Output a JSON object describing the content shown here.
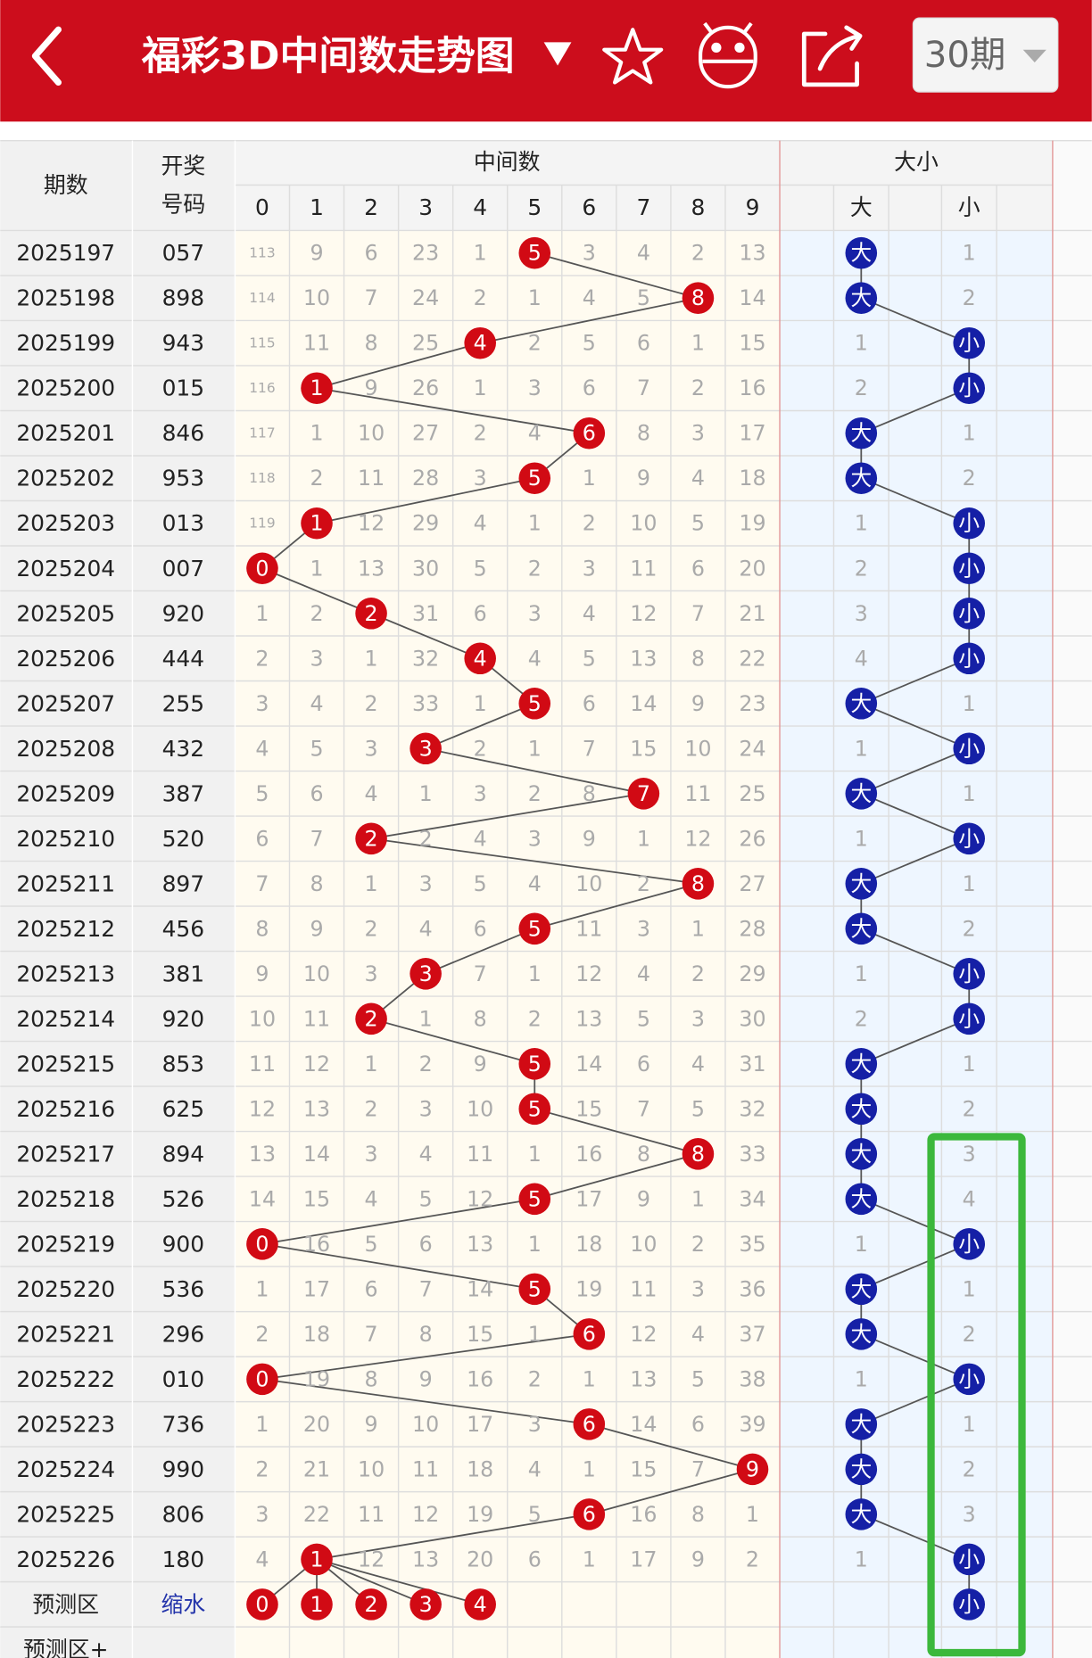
{
  "header": {
    "title": "福彩3D中间数走势图",
    "period_select": "30期"
  },
  "table": {
    "head": {
      "period": "期数",
      "draw": [
        "开奖",
        "号码"
      ],
      "middle": "中间数",
      "size": "大小",
      "digits": [
        "0",
        "1",
        "2",
        "3",
        "4",
        "5",
        "6",
        "7",
        "8",
        "9"
      ],
      "big": "大",
      "small": "小"
    },
    "rows": [
      {
        "period": "2025197",
        "draw": "057",
        "mid": [
          "113",
          "9",
          "6",
          "23",
          "1",
          {
            "ball": "5"
          },
          "3",
          "4",
          "2",
          "13"
        ],
        "big": {
          "ball": "大"
        },
        "small": "1"
      },
      {
        "period": "2025198",
        "draw": "898",
        "mid": [
          "114",
          "10",
          "7",
          "24",
          "2",
          "1",
          "4",
          "5",
          {
            "ball": "8"
          },
          "14"
        ],
        "big": {
          "ball": "大"
        },
        "small": "2"
      },
      {
        "period": "2025199",
        "draw": "943",
        "mid": [
          "115",
          "11",
          "8",
          "25",
          {
            "ball": "4"
          },
          "2",
          "5",
          "6",
          "1",
          "15"
        ],
        "big": "1",
        "small": {
          "ball": "小"
        }
      },
      {
        "period": "2025200",
        "draw": "015",
        "mid": [
          "116",
          {
            "ball": "1"
          },
          "9",
          "26",
          "1",
          "3",
          "6",
          "7",
          "2",
          "16"
        ],
        "big": "2",
        "small": {
          "ball": "小"
        }
      },
      {
        "period": "2025201",
        "draw": "846",
        "mid": [
          "117",
          "1",
          "10",
          "27",
          "2",
          "4",
          {
            "ball": "6"
          },
          "8",
          "3",
          "17"
        ],
        "big": {
          "ball": "大"
        },
        "small": "1"
      },
      {
        "period": "2025202",
        "draw": "953",
        "mid": [
          "118",
          "2",
          "11",
          "28",
          "3",
          {
            "ball": "5"
          },
          "1",
          "9",
          "4",
          "18"
        ],
        "big": {
          "ball": "大"
        },
        "small": "2"
      },
      {
        "period": "2025203",
        "draw": "013",
        "mid": [
          "119",
          {
            "ball": "1"
          },
          "12",
          "29",
          "4",
          "1",
          "2",
          "10",
          "5",
          "19"
        ],
        "big": "1",
        "small": {
          "ball": "小"
        }
      },
      {
        "period": "2025204",
        "draw": "007",
        "mid": [
          {
            "ball": "0"
          },
          "1",
          "13",
          "30",
          "5",
          "2",
          "3",
          "11",
          "6",
          "20"
        ],
        "big": "2",
        "small": {
          "ball": "小"
        }
      },
      {
        "period": "2025205",
        "draw": "920",
        "mid": [
          "1",
          "2",
          {
            "ball": "2"
          },
          "31",
          "6",
          "3",
          "4",
          "12",
          "7",
          "21"
        ],
        "big": "3",
        "small": {
          "ball": "小"
        }
      },
      {
        "period": "2025206",
        "draw": "444",
        "mid": [
          "2",
          "3",
          "1",
          "32",
          {
            "ball": "4"
          },
          "4",
          "5",
          "13",
          "8",
          "22"
        ],
        "big": "4",
        "small": {
          "ball": "小"
        }
      },
      {
        "period": "2025207",
        "draw": "255",
        "mid": [
          "3",
          "4",
          "2",
          "33",
          "1",
          {
            "ball": "5"
          },
          "6",
          "14",
          "9",
          "23"
        ],
        "big": {
          "ball": "大"
        },
        "small": "1"
      },
      {
        "period": "2025208",
        "draw": "432",
        "mid": [
          "4",
          "5",
          "3",
          {
            "ball": "3"
          },
          "2",
          "1",
          "7",
          "15",
          "10",
          "24"
        ],
        "big": "1",
        "small": {
          "ball": "小"
        }
      },
      {
        "period": "2025209",
        "draw": "387",
        "mid": [
          "5",
          "6",
          "4",
          "1",
          "3",
          "2",
          "8",
          {
            "ball": "7"
          },
          "11",
          "25"
        ],
        "big": {
          "ball": "大"
        },
        "small": "1"
      },
      {
        "period": "2025210",
        "draw": "520",
        "mid": [
          "6",
          "7",
          {
            "ball": "2"
          },
          "2",
          "4",
          "3",
          "9",
          "1",
          "12",
          "26"
        ],
        "big": "1",
        "small": {
          "ball": "小"
        }
      },
      {
        "period": "2025211",
        "draw": "897",
        "mid": [
          "7",
          "8",
          "1",
          "3",
          "5",
          "4",
          "10",
          "2",
          {
            "ball": "8"
          },
          "27"
        ],
        "big": {
          "ball": "大"
        },
        "small": "1"
      },
      {
        "period": "2025212",
        "draw": "456",
        "mid": [
          "8",
          "9",
          "2",
          "4",
          "6",
          {
            "ball": "5"
          },
          "11",
          "3",
          "1",
          "28"
        ],
        "big": {
          "ball": "大"
        },
        "small": "2"
      },
      {
        "period": "2025213",
        "draw": "381",
        "mid": [
          "9",
          "10",
          "3",
          {
            "ball": "3"
          },
          "7",
          "1",
          "12",
          "4",
          "2",
          "29"
        ],
        "big": "1",
        "small": {
          "ball": "小"
        }
      },
      {
        "period": "2025214",
        "draw": "920",
        "mid": [
          "10",
          "11",
          {
            "ball": "2"
          },
          "1",
          "8",
          "2",
          "13",
          "5",
          "3",
          "30"
        ],
        "big": "2",
        "small": {
          "ball": "小"
        }
      },
      {
        "period": "2025215",
        "draw": "853",
        "mid": [
          "11",
          "12",
          "1",
          "2",
          "9",
          {
            "ball": "5"
          },
          "14",
          "6",
          "4",
          "31"
        ],
        "big": {
          "ball": "大"
        },
        "small": "1"
      },
      {
        "period": "2025216",
        "draw": "625",
        "mid": [
          "12",
          "13",
          "2",
          "3",
          "10",
          {
            "ball": "5"
          },
          "15",
          "7",
          "5",
          "32"
        ],
        "big": {
          "ball": "大"
        },
        "small": "2"
      },
      {
        "period": "2025217",
        "draw": "894",
        "mid": [
          "13",
          "14",
          "3",
          "4",
          "11",
          "1",
          "16",
          "8",
          {
            "ball": "8"
          },
          "33"
        ],
        "big": {
          "ball": "大"
        },
        "small": "3"
      },
      {
        "period": "2025218",
        "draw": "526",
        "mid": [
          "14",
          "15",
          "4",
          "5",
          "12",
          {
            "ball": "5"
          },
          "17",
          "9",
          "1",
          "34"
        ],
        "big": {
          "ball": "大"
        },
        "small": "4"
      },
      {
        "period": "2025219",
        "draw": "900",
        "mid": [
          {
            "ball": "0"
          },
          "16",
          "5",
          "6",
          "13",
          "1",
          "18",
          "10",
          "2",
          "35"
        ],
        "big": "1",
        "small": {
          "ball": "小"
        }
      },
      {
        "period": "2025220",
        "draw": "536",
        "mid": [
          "1",
          "17",
          "6",
          "7",
          "14",
          {
            "ball": "5"
          },
          "19",
          "11",
          "3",
          "36"
        ],
        "big": {
          "ball": "大"
        },
        "small": "1"
      },
      {
        "period": "2025221",
        "draw": "296",
        "mid": [
          "2",
          "18",
          "7",
          "8",
          "15",
          "1",
          {
            "ball": "6"
          },
          "12",
          "4",
          "37"
        ],
        "big": {
          "ball": "大"
        },
        "small": "2"
      },
      {
        "period": "2025222",
        "draw": "010",
        "mid": [
          {
            "ball": "0"
          },
          "19",
          "8",
          "9",
          "16",
          "2",
          "1",
          "13",
          "5",
          "38"
        ],
        "big": "1",
        "small": {
          "ball": "小"
        }
      },
      {
        "period": "2025223",
        "draw": "736",
        "mid": [
          "1",
          "20",
          "9",
          "10",
          "17",
          "3",
          {
            "ball": "6"
          },
          "14",
          "6",
          "39"
        ],
        "big": {
          "ball": "大"
        },
        "small": "1"
      },
      {
        "period": "2025224",
        "draw": "990",
        "mid": [
          "2",
          "21",
          "10",
          "11",
          "18",
          "4",
          "1",
          "15",
          "7",
          {
            "ball": "9"
          }
        ],
        "big": {
          "ball": "大"
        },
        "small": "2"
      },
      {
        "period": "2025225",
        "draw": "806",
        "mid": [
          "3",
          "22",
          "11",
          "12",
          "19",
          "5",
          {
            "ball": "6"
          },
          "16",
          "8",
          "1"
        ],
        "big": {
          "ball": "大"
        },
        "small": "3"
      },
      {
        "period": "2025226",
        "draw": "180",
        "mid": [
          "4",
          {
            "ball": "1"
          },
          "12",
          "13",
          "20",
          "6",
          "1",
          "17",
          "9",
          "2"
        ],
        "big": "1",
        "small": {
          "ball": "小"
        }
      }
    ],
    "predict": {
      "label": "预测区",
      "sub": "缩水",
      "balls": [
        "0",
        "1",
        "2",
        "3",
        "4"
      ],
      "small": {
        "ball": "小"
      }
    },
    "predict_plus": {
      "label": "预测区+"
    }
  }
}
